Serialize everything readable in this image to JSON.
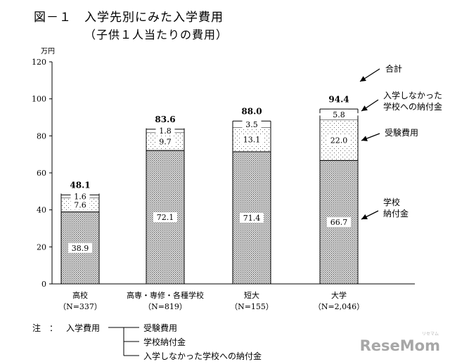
{
  "header": {
    "title": "図－１　入学先別にみた入学費用",
    "subtitle": "（子供１人当たりの費用）"
  },
  "chart_data": {
    "type": "bar",
    "stacked": true,
    "ylabel": "万円",
    "ylim": [
      0,
      120
    ],
    "yticks": [
      "0",
      "20",
      "40",
      "60",
      "80",
      "100",
      "120"
    ],
    "categories": [
      "高校",
      "高専・専修・各種学校",
      "短大",
      "大学"
    ],
    "category_notes": [
      "（N=337）",
      "（N=819）",
      "（N=155）",
      "（N=2,046）"
    ],
    "series": [
      {
        "key": "nofu",
        "values": [
          38.9,
          72.1,
          71.4,
          66.7
        ],
        "labels": [
          "38.9",
          "72.1",
          "71.4",
          "66.7"
        ]
      },
      {
        "key": "juken",
        "values": [
          7.6,
          9.7,
          13.1,
          22.0
        ],
        "labels": [
          "7.6",
          "9.7",
          "13.1",
          "22.0"
        ]
      },
      {
        "key": "hinyugaku",
        "values": [
          1.6,
          1.8,
          3.5,
          5.8
        ],
        "labels": [
          "1.6",
          "1.8",
          "3.5",
          "5.8"
        ]
      }
    ],
    "totals": [
      48.1,
      83.6,
      88.0,
      94.4
    ],
    "total_labels": [
      "48.1",
      "83.6",
      "88.0",
      "94.4"
    ],
    "annotations": {
      "total": "合計",
      "hinyugaku_line1": "入学しなかった",
      "hinyugaku_line2": "学校への納付金",
      "juken": "受験費用",
      "nofu_line1": "学校",
      "nofu_line2": "納付金"
    },
    "grid": false
  },
  "note": {
    "head": "注　：",
    "category": "入学費用",
    "items": [
      "受験費用",
      "学校納付金",
      "入学しなかった学校への納付金"
    ]
  },
  "logo": {
    "text": "ReseMom",
    "sub": "リセマム"
  }
}
